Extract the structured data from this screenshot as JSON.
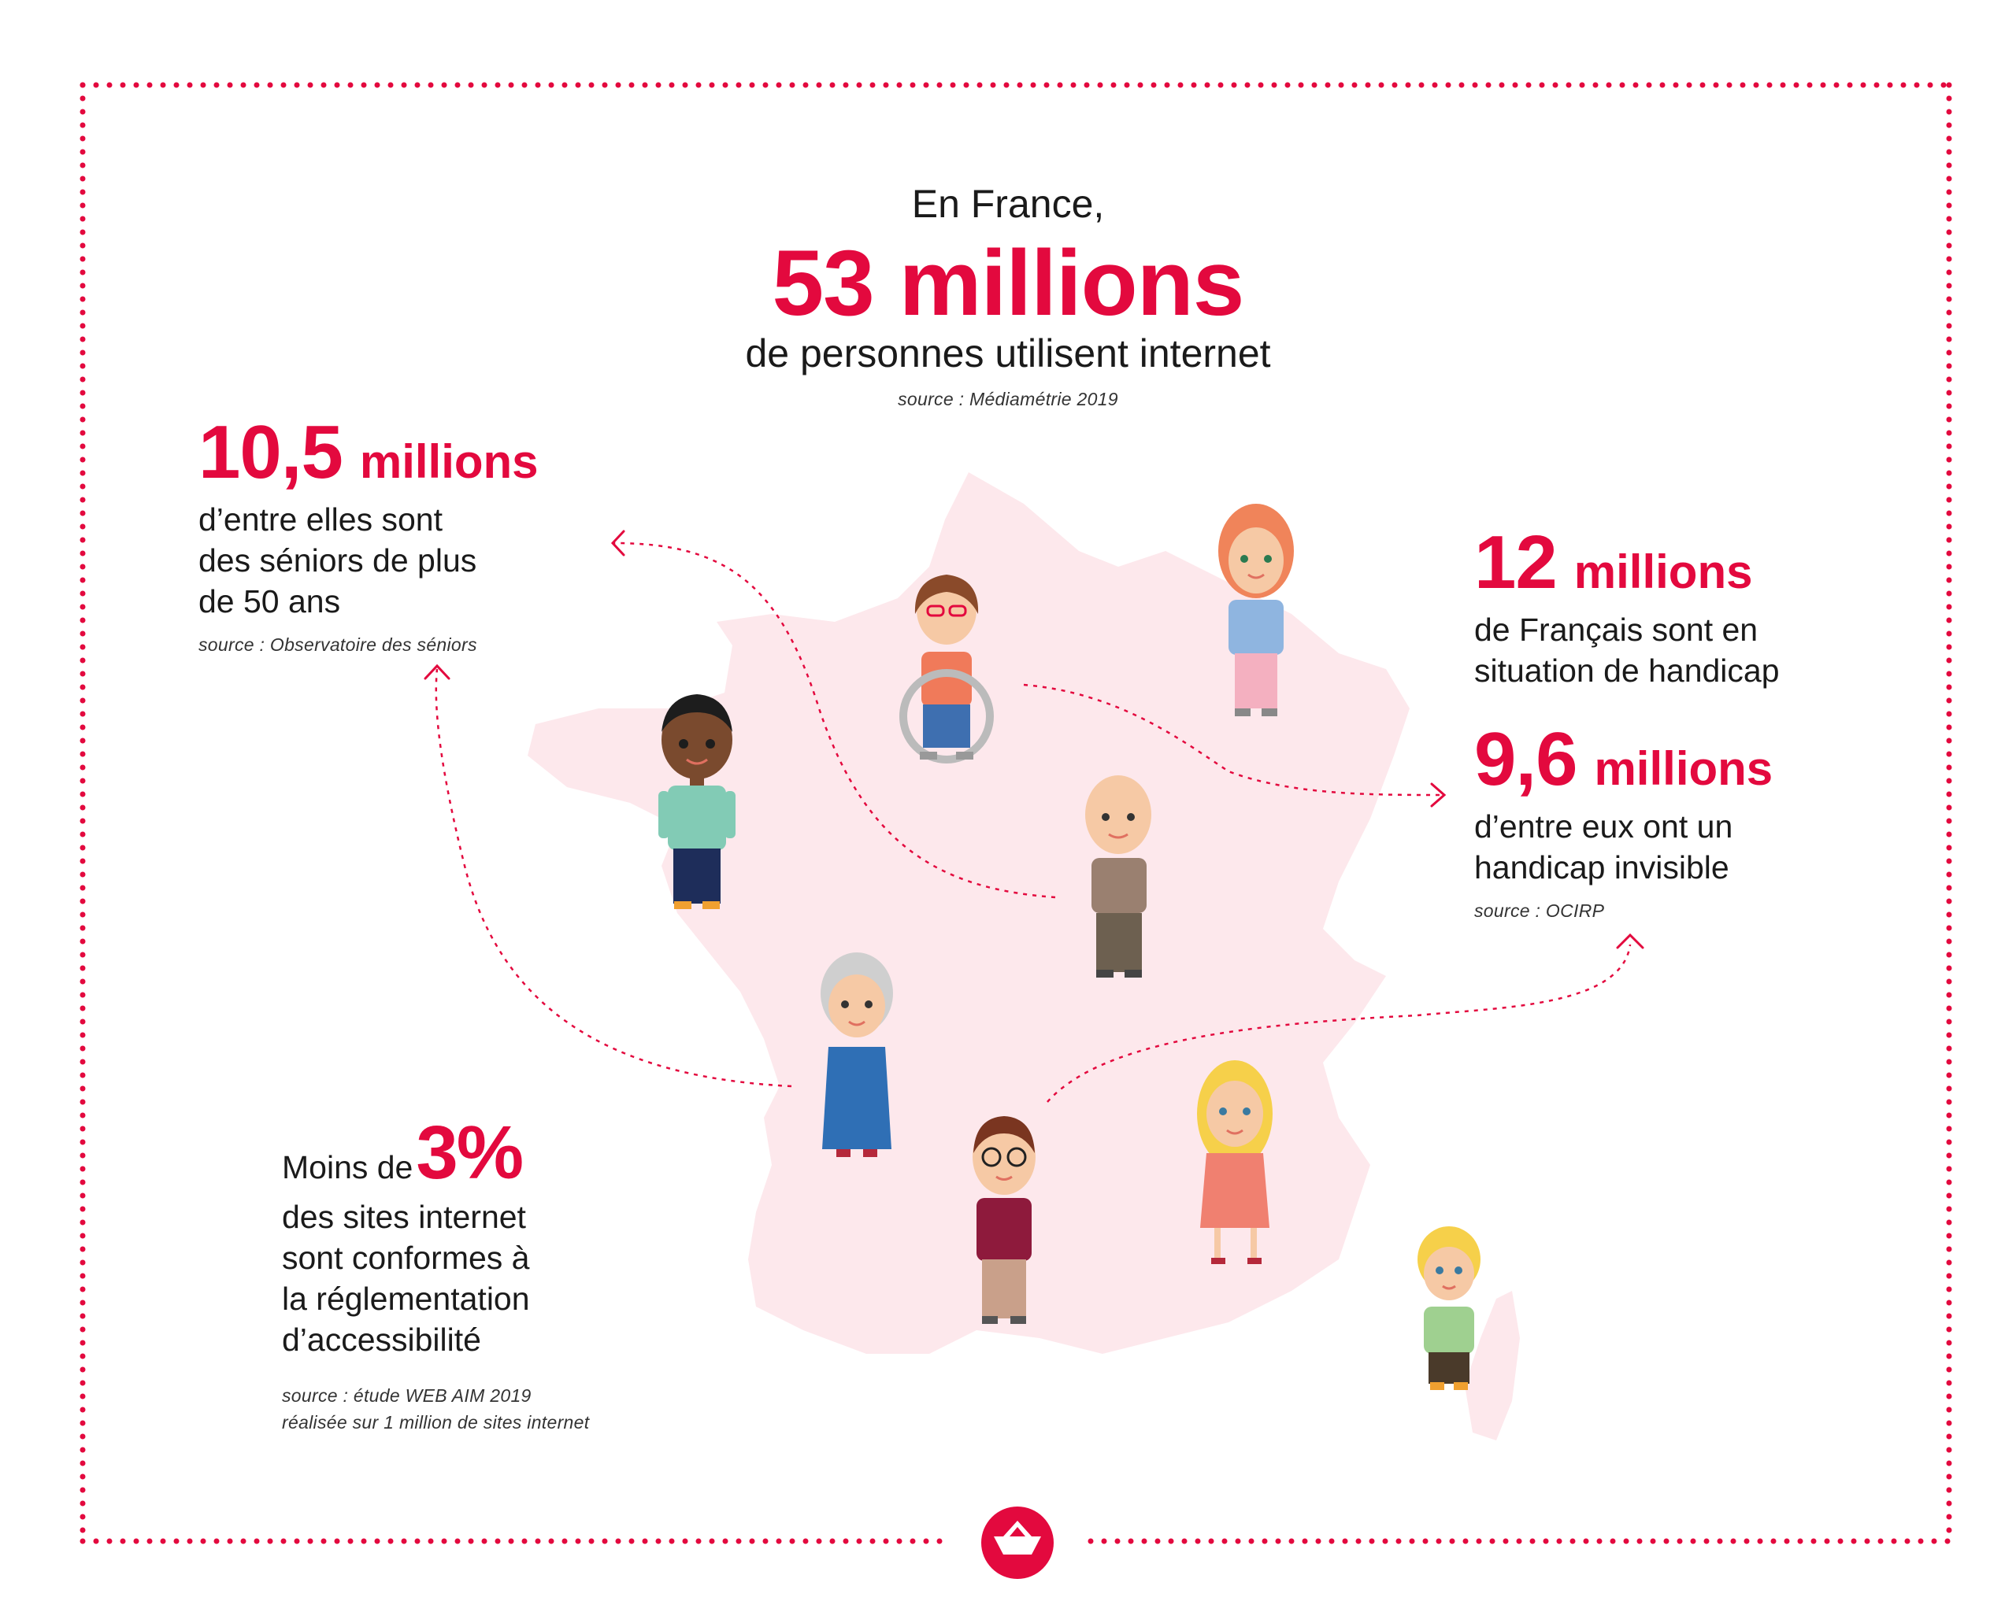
{
  "header": {
    "intro": "En France,",
    "headline": "53 millions",
    "subline": "de personnes utilisent internet",
    "source": "source : Médiamétrie 2019"
  },
  "seniors": {
    "figure": "10,5",
    "unit": "millions",
    "text_lines": [
      "d’entre elles sont",
      "des séniors de plus",
      "de 50 ans"
    ],
    "source": "source : Observatoire des séniors"
  },
  "handicap": {
    "figure": "12",
    "unit": "millions",
    "text_lines": [
      "de Français sont en",
      "situation de handicap"
    ]
  },
  "invisible": {
    "figure": "9,6",
    "unit": "millions",
    "text_lines": [
      "d’entre eux ont un",
      "handicap invisible"
    ],
    "source": "source : OCIRP"
  },
  "sites": {
    "lead": "Moins de",
    "figure": "3%",
    "text_lines": [
      "des sites internet",
      "sont conformes à",
      "la réglementation",
      "d’accessibilité"
    ],
    "source_lines": [
      "source : étude WEB AIM 2019",
      "réalisée sur 1 million de sites internet"
    ]
  },
  "colors": {
    "accent": "#e3093e",
    "map_fill": "#fde8ec",
    "text": "#1a1a1a"
  },
  "icons": [
    "france-map",
    "person-icons",
    "arrow-icons",
    "boat-logo-icon"
  ]
}
